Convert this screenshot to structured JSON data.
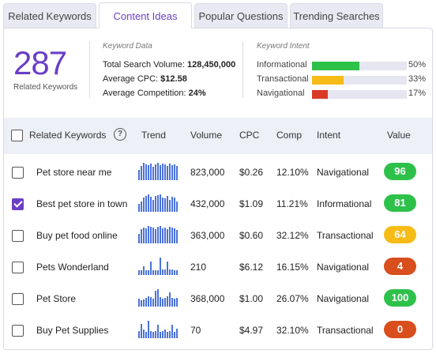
{
  "tabs": [
    {
      "label": "Related Keywords",
      "active": false
    },
    {
      "label": "Content Ideas",
      "active": true
    },
    {
      "label": "Popular Questions",
      "active": false
    },
    {
      "label": "Trending Searches",
      "active": false
    }
  ],
  "summary": {
    "total": "287",
    "total_label": "Related Keywords",
    "keyword_data": {
      "title": "Keyword Data",
      "volume_label": "Total Search Volume:",
      "volume_value": "128,450,000",
      "cpc_label": "Average CPC:",
      "cpc_value": "$12.58",
      "comp_label": "Average Competition:",
      "comp_value": "24%"
    },
    "keyword_intent": {
      "title": "Keyword Intent",
      "items": [
        {
          "label": "Informational",
          "pct": "50%",
          "value": 0.5,
          "color": "#2ec14a"
        },
        {
          "label": "Transactional",
          "pct": "33%",
          "value": 0.33,
          "color": "#f6bb16"
        },
        {
          "label": "Navigational",
          "pct": "17%",
          "value": 0.17,
          "color": "#d83a27"
        }
      ]
    }
  },
  "table": {
    "headers": {
      "keyword": "Related Keywords",
      "trend": "Trend",
      "volume": "Volume",
      "cpc": "CPC",
      "comp": "Comp",
      "intent": "Intent",
      "value": "Value"
    },
    "help_icon": "question-circle-icon",
    "rows": [
      {
        "keyword": "Pet store near me",
        "checked": false,
        "volume": "823,000",
        "cpc": "$0.26",
        "comp": "12.10%",
        "intent": "Navigational",
        "value": "96",
        "value_color": "#2ec14a",
        "trend": [
          0.6,
          0.8,
          1.0,
          0.9,
          0.85,
          0.95,
          0.75,
          0.9,
          1.0,
          0.85,
          0.95,
          0.9,
          0.8,
          0.95,
          0.85,
          0.9,
          0.8
        ]
      },
      {
        "keyword": "Best pet store in town",
        "checked": true,
        "volume": "432,000",
        "cpc": "$1.09",
        "comp": "11.21%",
        "intent": "Informational",
        "value": "81",
        "value_color": "#2ec14a",
        "trend": [
          0.45,
          0.6,
          0.8,
          0.9,
          1.0,
          0.85,
          0.7,
          0.9,
          0.95,
          1.0,
          0.8,
          0.75,
          0.9,
          0.7,
          0.85,
          0.8,
          0.6
        ]
      },
      {
        "keyword": "Buy pet food online",
        "checked": false,
        "volume": "363,000",
        "cpc": "$0.60",
        "comp": "32.12%",
        "intent": "Transactional",
        "value": "64",
        "value_color": "#f6bb16",
        "trend": [
          0.55,
          0.8,
          0.9,
          0.85,
          1.0,
          0.95,
          0.9,
          0.8,
          0.95,
          1.0,
          0.85,
          0.9,
          0.8,
          0.95,
          0.9,
          0.85,
          0.75
        ]
      },
      {
        "keyword": "Pets Wonderland",
        "checked": false,
        "volume": "210",
        "cpc": "$6.12",
        "comp": "16.15%",
        "intent": "Navigational",
        "value": "4",
        "value_color": "#d84e1c",
        "trend": [
          0.25,
          0.25,
          0.5,
          0.25,
          0.25,
          0.75,
          0.25,
          0.25,
          0.25,
          1.0,
          0.3,
          0.3,
          0.75,
          0.3,
          0.3,
          0.25,
          0.25
        ]
      },
      {
        "keyword": "Pet Store",
        "checked": false,
        "volume": "368,000",
        "cpc": "$1.00",
        "comp": "26.07%",
        "intent": "Navigational",
        "value": "100",
        "value_color": "#2ec14a",
        "trend": [
          0.45,
          0.35,
          0.4,
          0.5,
          0.6,
          0.55,
          0.45,
          0.9,
          1.0,
          0.55,
          0.45,
          0.5,
          0.6,
          0.8,
          0.5,
          0.45,
          0.5
        ]
      },
      {
        "keyword": "Buy Pet Supplies",
        "checked": false,
        "volume": "70",
        "cpc": "$4.97",
        "comp": "32.10%",
        "intent": "Transactional",
        "value": "0",
        "value_color": "#d84e1c",
        "trend": [
          0.4,
          0.8,
          0.5,
          0.35,
          1.0,
          0.4,
          0.35,
          0.4,
          0.75,
          0.35,
          0.4,
          0.5,
          0.35,
          0.4,
          0.75,
          0.35,
          0.55
        ]
      }
    ]
  }
}
